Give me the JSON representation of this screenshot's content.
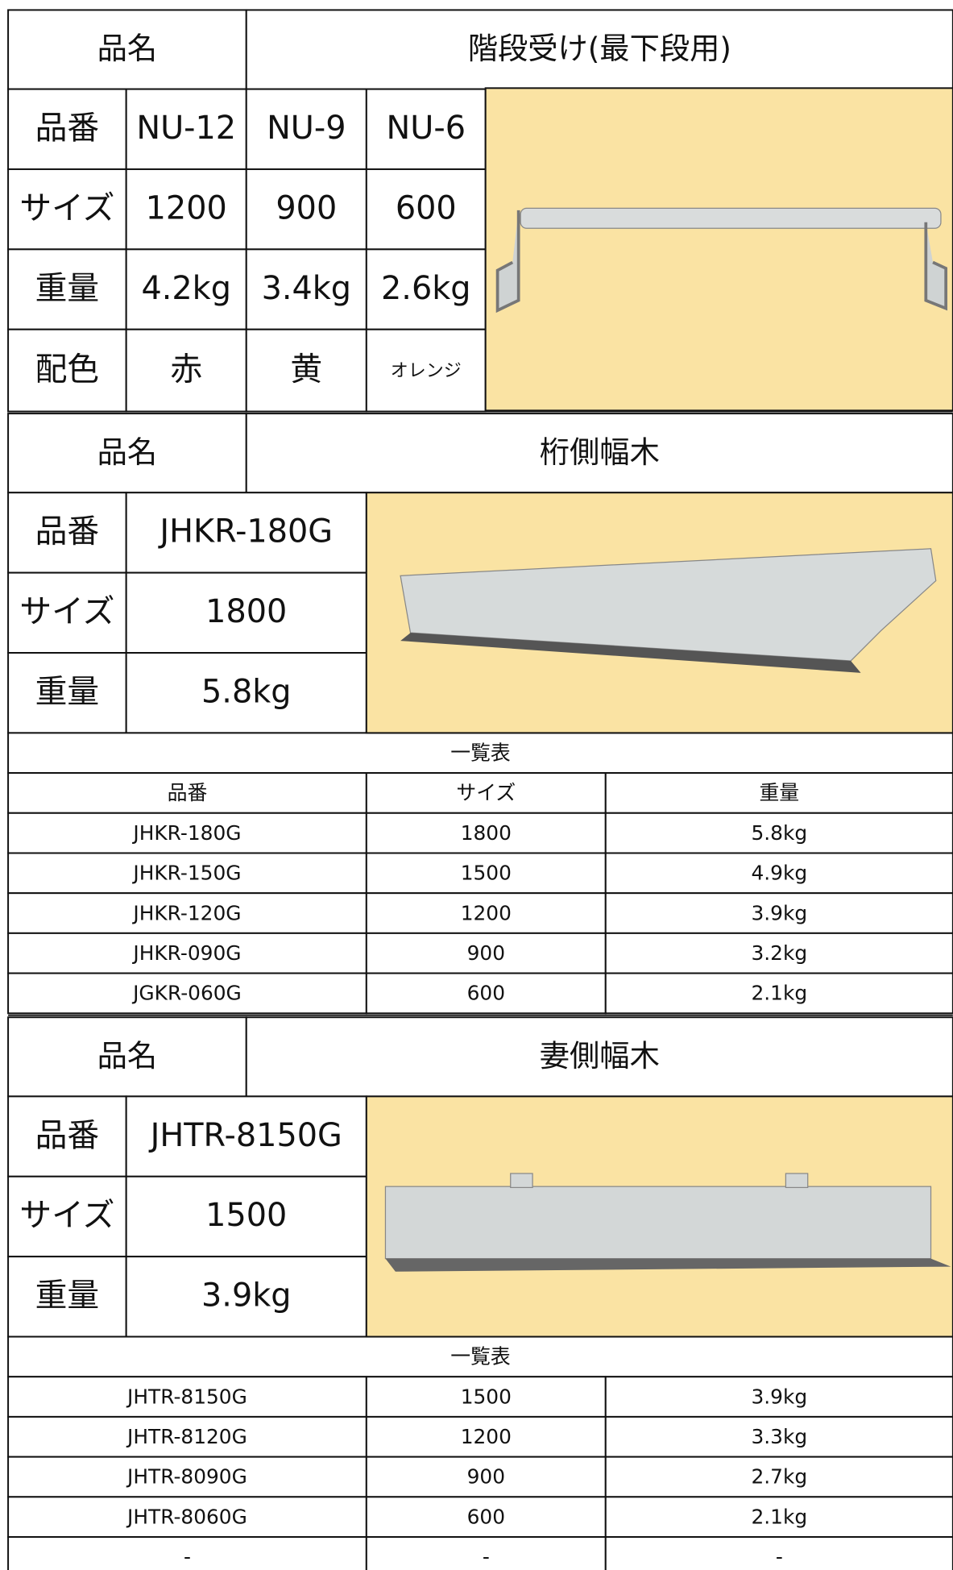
{
  "sections": [
    {
      "name_label": "品名",
      "name": "階段受け(最下段用)",
      "rows": [
        [
          "品番",
          "NU-12",
          "NU-9",
          "NU-6"
        ],
        [
          "サイズ",
          "1200",
          "900",
          "600"
        ],
        [
          "重量",
          "4.2kg",
          "3.4kg",
          "2.6kg"
        ],
        [
          "配色",
          "赤",
          "黄",
          "オレンジ"
        ]
      ]
    },
    {
      "name_label": "品名",
      "name": "桁側幅木",
      "rows": [
        [
          "品番",
          "JHKR-180G"
        ],
        [
          "サイズ",
          "1800"
        ],
        [
          "重量",
          "5.8kg"
        ]
      ],
      "list": {
        "title": "一覧表",
        "rows": [
          [
            "品番",
            "サイズ",
            "重量"
          ],
          [
            "JHKR-180G",
            "1800",
            "5.8kg"
          ],
          [
            "JHKR-150G",
            "1500",
            "4.9kg"
          ],
          [
            "JHKR-120G",
            "1200",
            "3.9kg"
          ],
          [
            "JHKR-090G",
            "900",
            "3.2kg"
          ],
          [
            "JGKR-060G",
            "600",
            "2.1kg"
          ]
        ]
      }
    },
    {
      "name_label": "品名",
      "name": "妻側幅木",
      "rows": [
        [
          "品番",
          "JHTR-8150G"
        ],
        [
          "サイズ",
          "1500"
        ],
        [
          "重量",
          "3.9kg"
        ]
      ],
      "list": {
        "title": "一覧表",
        "rows": [
          [
            "JHTR-8150G",
            "1500",
            "3.9kg"
          ],
          [
            "JHTR-8120G",
            "1200",
            "3.3kg"
          ],
          [
            "JHTR-8090G",
            "900",
            "2.7kg"
          ],
          [
            "JHTR-8060G",
            "600",
            "2.1kg"
          ],
          [
            "-",
            "-",
            "-"
          ]
        ]
      }
    }
  ]
}
